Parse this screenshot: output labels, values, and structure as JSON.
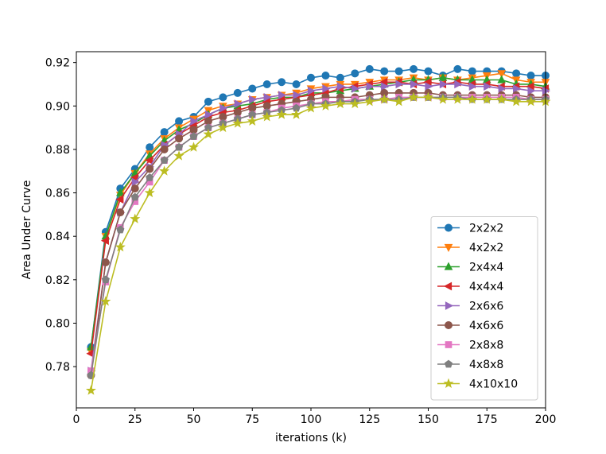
{
  "chart_data": {
    "type": "line",
    "title": "",
    "xlabel": "iterations (k)",
    "ylabel": "Area Under Curve",
    "xlim": [
      0,
      200
    ],
    "ylim": [
      0.761,
      0.925
    ],
    "xticks": [
      0,
      25,
      50,
      75,
      100,
      125,
      150,
      175,
      200
    ],
    "yticks": [
      0.78,
      0.8,
      0.82,
      0.84,
      0.86,
      0.88,
      0.9,
      0.92
    ],
    "ytick_labels": [
      "0.78",
      "0.80",
      "0.82",
      "0.84",
      "0.86",
      "0.88",
      "0.90",
      "0.92"
    ],
    "grid": false,
    "legend_position": "lower-right",
    "x": [
      6.25,
      12.5,
      18.75,
      25,
      31.25,
      37.5,
      43.75,
      50,
      56.25,
      62.5,
      68.75,
      75,
      81.25,
      87.5,
      93.75,
      100,
      106.25,
      112.5,
      118.75,
      125,
      131.25,
      137.5,
      143.75,
      150,
      156.25,
      162.5,
      168.75,
      175,
      181.25,
      187.5,
      193.75,
      200
    ],
    "series": [
      {
        "name": "2x2x2",
        "color": "#1f77b4",
        "marker": "circle",
        "values": [
          0.789,
          0.842,
          0.862,
          0.871,
          0.881,
          0.888,
          0.893,
          0.895,
          0.902,
          0.904,
          0.906,
          0.908,
          0.91,
          0.911,
          0.91,
          0.913,
          0.914,
          0.913,
          0.915,
          0.917,
          0.916,
          0.916,
          0.917,
          0.916,
          0.914,
          0.917,
          0.916,
          0.916,
          0.916,
          0.915,
          0.914,
          0.914
        ]
      },
      {
        "name": "4x2x2",
        "color": "#ff7f0e",
        "marker": "triangle-down",
        "values": [
          0.787,
          0.84,
          0.859,
          0.869,
          0.878,
          0.885,
          0.89,
          0.894,
          0.898,
          0.9,
          0.901,
          0.903,
          0.904,
          0.905,
          0.906,
          0.908,
          0.909,
          0.91,
          0.91,
          0.911,
          0.912,
          0.912,
          0.913,
          0.912,
          0.913,
          0.912,
          0.913,
          0.914,
          0.915,
          0.912,
          0.911,
          0.911
        ]
      },
      {
        "name": "2x4x4",
        "color": "#2ca02c",
        "marker": "triangle-up",
        "values": [
          0.789,
          0.84,
          0.86,
          0.869,
          0.877,
          0.884,
          0.889,
          0.892,
          0.896,
          0.899,
          0.9,
          0.901,
          0.903,
          0.904,
          0.904,
          0.906,
          0.906,
          0.907,
          0.908,
          0.909,
          0.91,
          0.911,
          0.912,
          0.912,
          0.913,
          0.912,
          0.912,
          0.912,
          0.912,
          0.91,
          0.91,
          0.909
        ]
      },
      {
        "name": "4x4x4",
        "color": "#d62728",
        "marker": "triangle-left",
        "values": [
          0.786,
          0.838,
          0.857,
          0.867,
          0.875,
          0.882,
          0.887,
          0.891,
          0.895,
          0.897,
          0.898,
          0.9,
          0.902,
          0.903,
          0.904,
          0.905,
          0.906,
          0.908,
          0.909,
          0.91,
          0.911,
          0.911,
          0.91,
          0.911,
          0.91,
          0.911,
          0.91,
          0.91,
          0.909,
          0.909,
          0.909,
          0.908
        ]
      },
      {
        "name": "2x6x6",
        "color": "#9467bd",
        "marker": "triangle-right",
        "values": [
          0.778,
          0.828,
          0.851,
          0.865,
          0.872,
          0.882,
          0.887,
          0.893,
          0.896,
          0.899,
          0.901,
          0.903,
          0.904,
          0.905,
          0.905,
          0.907,
          0.908,
          0.909,
          0.908,
          0.909,
          0.909,
          0.91,
          0.91,
          0.909,
          0.91,
          0.91,
          0.909,
          0.909,
          0.908,
          0.908,
          0.907,
          0.907
        ]
      },
      {
        "name": "4x6x6",
        "color": "#8c564b",
        "marker": "circle",
        "values": [
          0.776,
          0.828,
          0.851,
          0.862,
          0.871,
          0.88,
          0.885,
          0.889,
          0.893,
          0.895,
          0.897,
          0.899,
          0.9,
          0.901,
          0.902,
          0.903,
          0.904,
          0.904,
          0.904,
          0.905,
          0.906,
          0.906,
          0.906,
          0.906,
          0.905,
          0.905,
          0.905,
          0.905,
          0.905,
          0.905,
          0.904,
          0.904
        ]
      },
      {
        "name": "2x8x8",
        "color": "#e377c2",
        "marker": "square",
        "values": [
          0.778,
          0.819,
          0.844,
          0.856,
          0.865,
          0.875,
          0.881,
          0.886,
          0.89,
          0.892,
          0.894,
          0.896,
          0.897,
          0.899,
          0.9,
          0.901,
          0.902,
          0.902,
          0.903,
          0.903,
          0.903,
          0.904,
          0.904,
          0.904,
          0.904,
          0.904,
          0.904,
          0.904,
          0.904,
          0.904,
          0.903,
          0.903
        ]
      },
      {
        "name": "4x8x8",
        "color": "#7f7f7f",
        "marker": "pentagon",
        "values": [
          0.776,
          0.82,
          0.843,
          0.858,
          0.867,
          0.875,
          0.881,
          0.886,
          0.89,
          0.892,
          0.894,
          0.896,
          0.897,
          0.898,
          0.899,
          0.901,
          0.901,
          0.902,
          0.902,
          0.903,
          0.903,
          0.903,
          0.904,
          0.904,
          0.904,
          0.904,
          0.903,
          0.903,
          0.903,
          0.903,
          0.903,
          0.903
        ]
      },
      {
        "name": "4x10x10",
        "color": "#bcbd22",
        "marker": "star",
        "values": [
          0.769,
          0.81,
          0.835,
          0.848,
          0.86,
          0.87,
          0.877,
          0.881,
          0.887,
          0.89,
          0.892,
          0.893,
          0.895,
          0.896,
          0.896,
          0.899,
          0.9,
          0.901,
          0.901,
          0.902,
          0.903,
          0.902,
          0.904,
          0.904,
          0.903,
          0.903,
          0.903,
          0.903,
          0.903,
          0.902,
          0.902,
          0.902
        ]
      }
    ]
  }
}
